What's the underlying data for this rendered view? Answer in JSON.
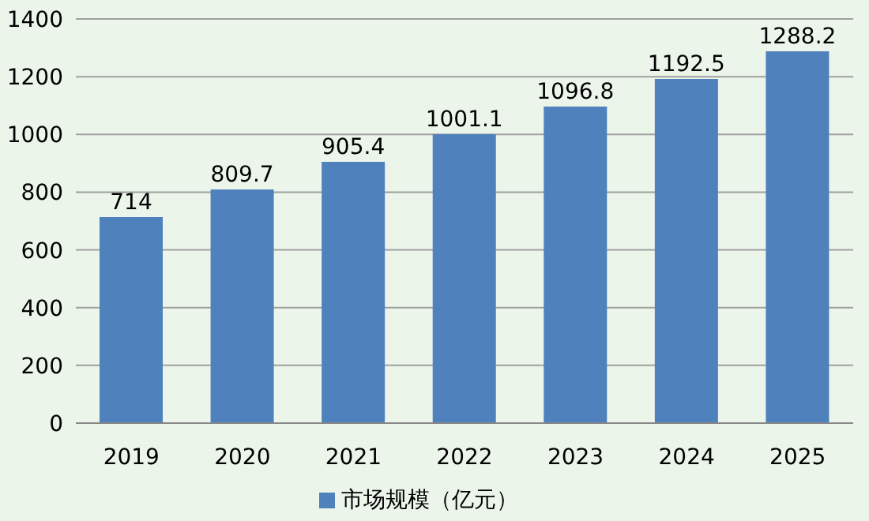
{
  "chart_data": {
    "type": "bar",
    "categories": [
      "2019",
      "2020",
      "2021",
      "2022",
      "2023",
      "2024",
      "2025"
    ],
    "series": [
      {
        "name": "市场规模（亿元）",
        "color": "#4f81bd",
        "values": [
          714,
          809.7,
          905.4,
          1001.1,
          1096.8,
          1192.5,
          1288.2
        ]
      }
    ],
    "ylim": [
      0,
      1400
    ],
    "yticks": [
      0,
      200,
      400,
      600,
      800,
      1000,
      1200,
      1400
    ],
    "grid": "y",
    "legend": "bottom",
    "data_labels": true
  }
}
